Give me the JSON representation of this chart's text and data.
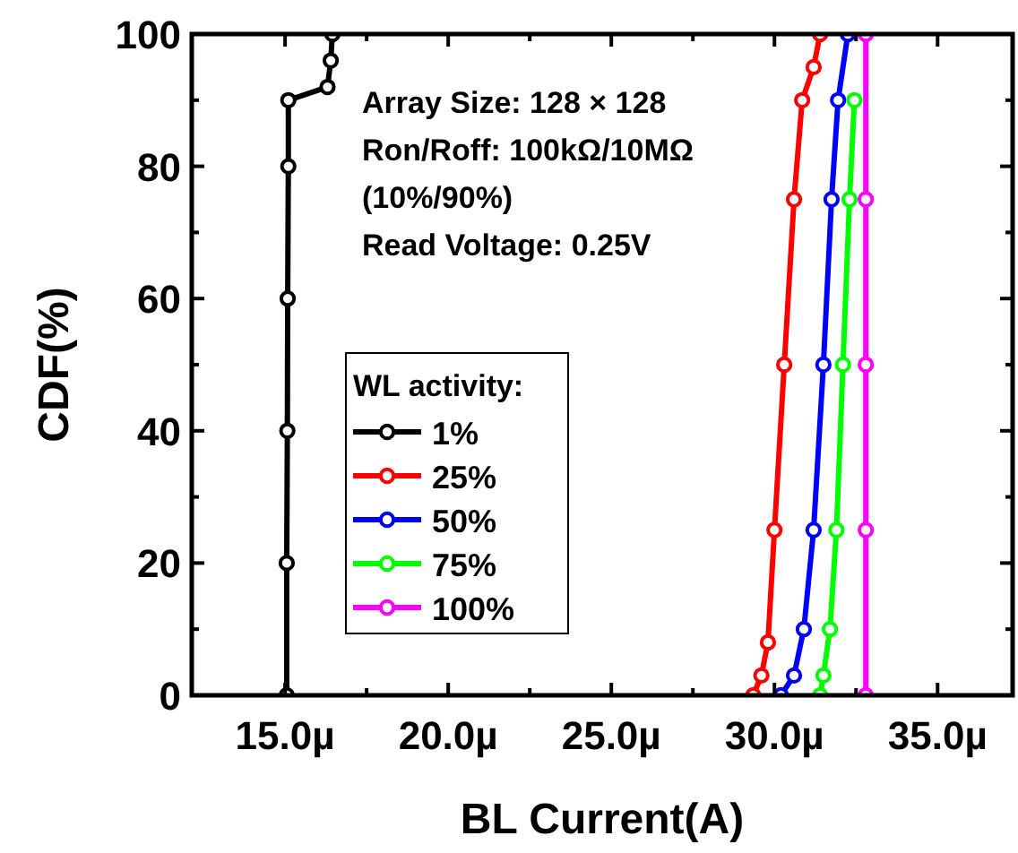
{
  "chart_data": {
    "type": "line",
    "xlabel": "BL Current(A)",
    "ylabel": "CDF(%)",
    "legend_title": "WL activity:",
    "legend": "bottom left",
    "marker": "circle",
    "line_style": "solid",
    "grid": false,
    "annotations": [
      "Array Size: 128 × 128",
      "Ron/Roff: 100kΩ/10MΩ",
      "(10%/90%)",
      "Read Voltage: 0.25V"
    ],
    "xlim": [
      12.14,
      37.3
    ],
    "ylim": [
      0,
      100
    ],
    "xticks": [
      {
        "value": 15,
        "label": "15.0µ"
      },
      {
        "value": 17.5,
        "label": null
      },
      {
        "value": 20,
        "label": "20.0µ"
      },
      {
        "value": 22.5,
        "label": null
      },
      {
        "value": 25,
        "label": "25.0µ"
      },
      {
        "value": 27.5,
        "label": null
      },
      {
        "value": 30,
        "label": "30.0µ"
      },
      {
        "value": 32.5,
        "label": null
      },
      {
        "value": 35,
        "label": "35.0µ"
      }
    ],
    "yticks": [
      0,
      {
        "value": 10,
        "label": null
      },
      20,
      {
        "value": 30,
        "label": null
      },
      40,
      {
        "value": 50,
        "label": null
      },
      60,
      {
        "value": 70,
        "label": null
      },
      80,
      {
        "value": 90,
        "label": null
      },
      100
    ],
    "series": [
      {
        "name": "1%",
        "color": "#000000",
        "x": [
          15.05,
          15.05,
          15.07,
          15.08,
          15.1,
          15.1,
          16.3,
          16.4,
          16.45
        ],
        "values": [
          0,
          20,
          40,
          60,
          80,
          90,
          92,
          96,
          100
        ]
      },
      {
        "name": "25%",
        "color": "#ff0000",
        "x": [
          29.35,
          29.6,
          29.8,
          30.0,
          30.3,
          30.6,
          30.85,
          31.2,
          31.4
        ],
        "values": [
          0,
          3,
          8,
          25,
          50,
          75,
          90,
          95,
          100
        ]
      },
      {
        "name": "50%",
        "color": "#0000ff",
        "x": [
          30.2,
          30.6,
          30.9,
          31.2,
          31.5,
          31.75,
          31.95,
          32.25
        ],
        "values": [
          0,
          3,
          10,
          25,
          50,
          75,
          90,
          100
        ]
      },
      {
        "name": "75%",
        "color": "#00ff00",
        "x": [
          31.4,
          31.5,
          31.7,
          31.9,
          32.1,
          32.3,
          32.45
        ],
        "values": [
          0,
          3,
          10,
          25,
          50,
          75,
          90
        ]
      },
      {
        "name": "100%",
        "color": "#ff00ff",
        "x": [
          32.8,
          32.8,
          32.8,
          32.8,
          32.8
        ],
        "values": [
          0,
          25,
          50,
          75,
          100
        ]
      }
    ]
  }
}
